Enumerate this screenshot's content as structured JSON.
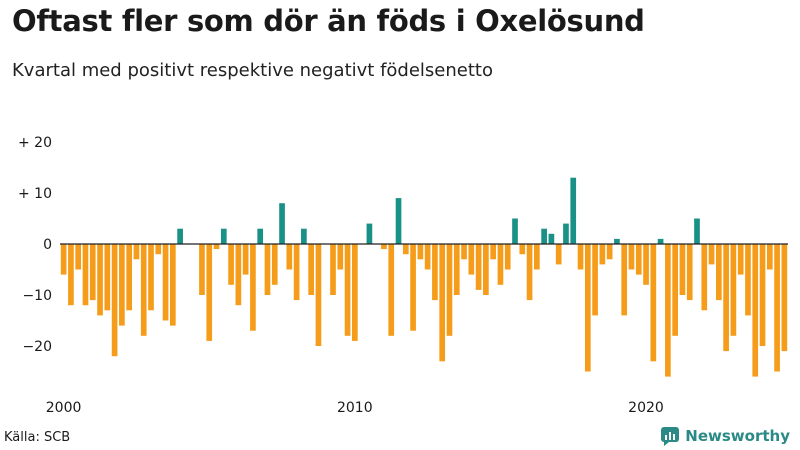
{
  "title": "Oftast fler som dör än föds i Oxelösund",
  "subtitle": "Kvartal med positivt respektive negativt födelsenetto",
  "source": "Källa: SCB",
  "brand": "Newsworthy",
  "colors": {
    "positive": "#1a9187",
    "negative": "#f59c1a",
    "brand": "#2b8a85"
  },
  "chart_data": {
    "type": "bar",
    "title": "Oftast fler som dör än föds i Oxelösund",
    "subtitle": "Kvartal med positivt respektive negativt födelsenetto",
    "xlabel": "",
    "ylabel": "",
    "ylim": [
      -27,
      20
    ],
    "y_ticks": [
      20,
      10,
      0,
      -10,
      -20
    ],
    "y_tick_labels": [
      "+ 20",
      "+ 10",
      "0",
      "−10",
      "−20"
    ],
    "x_ticks": [
      {
        "label": "2000",
        "index": 0
      },
      {
        "label": "2010",
        "index": 40
      },
      {
        "label": "2020",
        "index": 80
      }
    ],
    "start": "2000 Q1",
    "frequency": "quarterly",
    "values": [
      -6,
      -12,
      -5,
      -12,
      -11,
      -14,
      -13,
      -22,
      -16,
      -13,
      -3,
      -18,
      -13,
      -2,
      -15,
      -16,
      3,
      0,
      0,
      -10,
      -19,
      -1,
      3,
      -8,
      -12,
      -6,
      -17,
      3,
      -10,
      -8,
      8,
      -5,
      -11,
      3,
      -10,
      -20,
      0,
      -10,
      -5,
      -18,
      -19,
      0,
      4,
      0,
      -1,
      -18,
      9,
      -2,
      -17,
      -3,
      -5,
      -11,
      -23,
      -18,
      -10,
      -3,
      -6,
      -9,
      -10,
      -3,
      -8,
      -5,
      5,
      -2,
      -11,
      -5,
      3,
      2,
      -4,
      4,
      13,
      -5,
      -25,
      -14,
      -4,
      -3,
      1,
      -14,
      -5,
      -6,
      -8,
      -23,
      1,
      -26,
      -18,
      -10,
      -11,
      5,
      -13,
      -4,
      -11,
      -21,
      -18,
      -6,
      -14,
      -26,
      -20,
      -5,
      -25,
      -21
    ]
  }
}
